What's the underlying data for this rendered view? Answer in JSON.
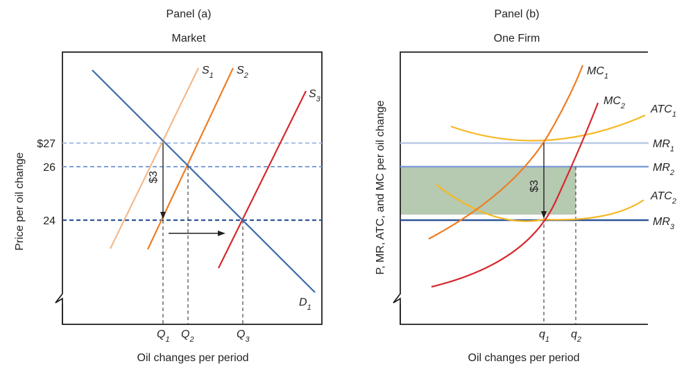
{
  "panel_a": {
    "heading": "Panel (a)",
    "subheading": "Market",
    "y_axis_title": "Price per oil change",
    "x_axis_title": "Oil changes per period",
    "price_ticks": [
      "$27",
      "26",
      "24"
    ],
    "curve_labels": {
      "s1": {
        "base": "S",
        "sub": "1"
      },
      "s2": {
        "base": "S",
        "sub": "2"
      },
      "s3": {
        "base": "S",
        "sub": "3"
      },
      "d1": {
        "base": "D",
        "sub": "1"
      }
    },
    "quantity_labels": [
      {
        "base": "Q",
        "sub": "1"
      },
      {
        "base": "Q",
        "sub": "2"
      },
      {
        "base": "Q",
        "sub": "3"
      }
    ],
    "price_drop_label": "$3"
  },
  "panel_b": {
    "heading": "Panel (b)",
    "subheading": "One Firm",
    "y_axis_title": "P, MR, ATC, and MC per oil change",
    "x_axis_title": "Oil changes per period",
    "curve_labels": {
      "mc1": {
        "base": "MC",
        "sub": "1"
      },
      "mc2": {
        "base": "MC",
        "sub": "2"
      },
      "atc1": {
        "base": "ATC",
        "sub": "1"
      },
      "atc2": {
        "base": "ATC",
        "sub": "2"
      },
      "mr1": {
        "base": "MR",
        "sub": "1"
      },
      "mr2": {
        "base": "MR",
        "sub": "2"
      },
      "mr3": {
        "base": "MR",
        "sub": "3"
      }
    },
    "quantity_labels": [
      {
        "base": "q",
        "sub": "1"
      },
      {
        "base": "q",
        "sub": "2"
      }
    ],
    "price_drop_label": "$3"
  },
  "colors": {
    "demand": "#3b6aa8",
    "s1": "#f4b98a",
    "s2": "#ee7d22",
    "s3": "#d7262b",
    "mc1": "#ee7d22",
    "mc2": "#d7262b",
    "atc": "#f7b824",
    "mr1": "#b9c9e6",
    "mr2": "#7f9fd4",
    "mr3": "#2f5597",
    "price27": "#a9c0e6",
    "price26": "#7d9fd8",
    "price24": "#2f5597",
    "profit_area": "#a9bfa3",
    "axis": "#231f20"
  }
}
